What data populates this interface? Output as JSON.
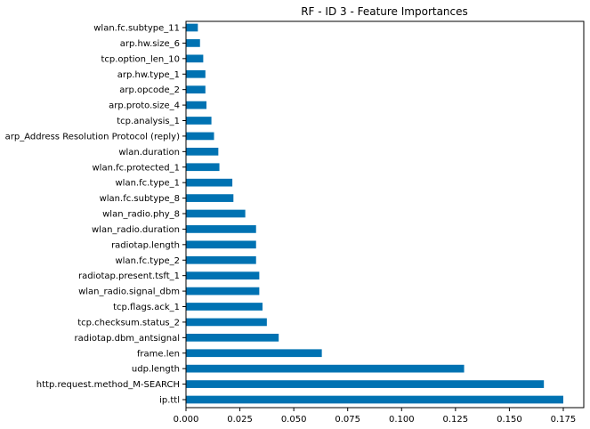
{
  "chart_data": {
    "type": "bar",
    "orientation": "horizontal",
    "title": "RF - ID 3 - Feature Importances",
    "xlabel": "",
    "ylabel": "",
    "xlim": [
      0,
      0.1845
    ],
    "x_ticks": [
      "0.000",
      "0.025",
      "0.050",
      "0.075",
      "0.100",
      "0.125",
      "0.150",
      "0.175"
    ],
    "x_tick_values": [
      0,
      0.025,
      0.05,
      0.075,
      0.1,
      0.125,
      0.15,
      0.175
    ],
    "bar_color": "#0072b2",
    "grid": false,
    "legend": "none",
    "categories": [
      "ip.ttl",
      "http.request.method_M-SEARCH",
      "udp.length",
      "frame.len",
      "radiotap.dbm_antsignal",
      "tcp.checksum.status_2",
      "tcp.flags.ack_1",
      "wlan_radio.signal_dbm",
      "radiotap.present.tsft_1",
      "wlan.fc.type_2",
      "radiotap.length",
      "wlan_radio.duration",
      "wlan_radio.phy_8",
      "wlan.fc.subtype_8",
      "wlan.fc.type_1",
      "wlan.fc.protected_1",
      "wlan.duration",
      "arp_Address Resolution Protocol (reply)",
      "tcp.analysis_1",
      "arp.proto.size_4",
      "arp.opcode_2",
      "arp.hw.type_1",
      "tcp.option_len_10",
      "arp.hw.size_6",
      "wlan.fc.subtype_11"
    ],
    "values": [
      0.175,
      0.166,
      0.129,
      0.063,
      0.043,
      0.0375,
      0.0355,
      0.034,
      0.034,
      0.0325,
      0.0325,
      0.0325,
      0.0275,
      0.022,
      0.0215,
      0.0155,
      0.015,
      0.013,
      0.0118,
      0.0095,
      0.009,
      0.009,
      0.008,
      0.0065,
      0.0055
    ]
  }
}
